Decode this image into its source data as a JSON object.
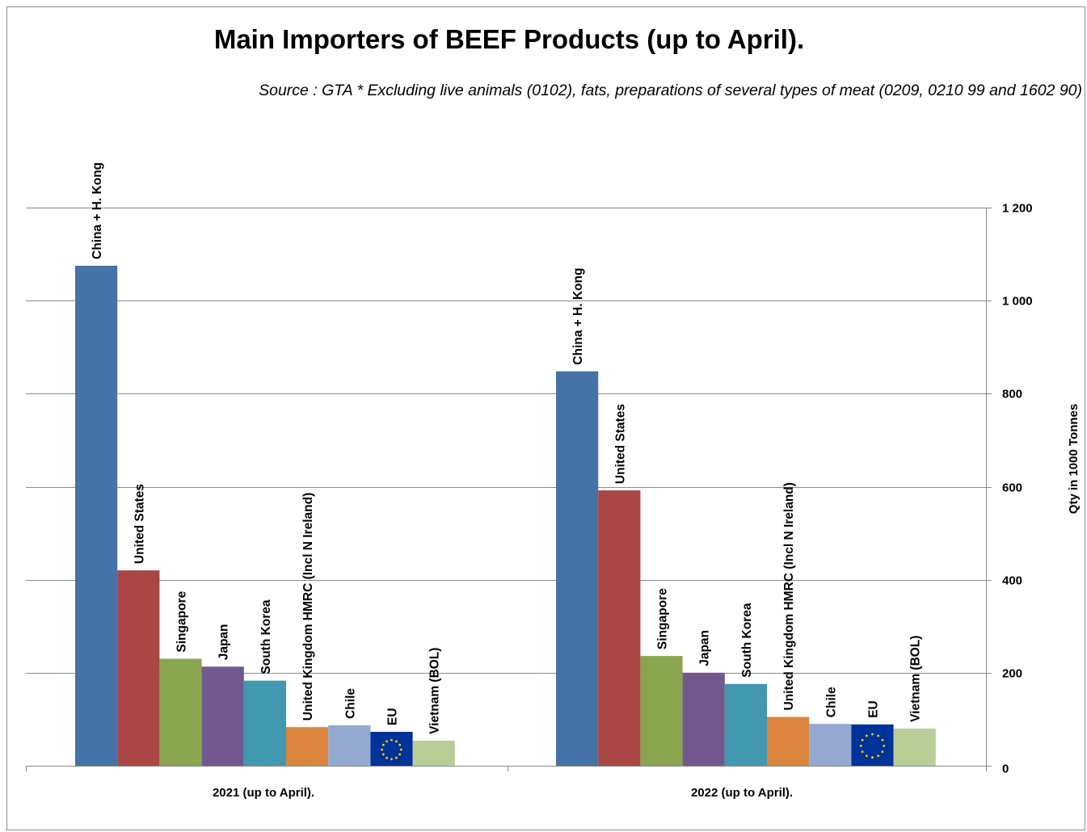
{
  "chart_data": {
    "type": "bar",
    "title": "Main Importers of BEEF Products (up to April).",
    "subtitle": "Source : GTA * Excluding live animals (0102), fats, preparations  of several types of meat (0209, 0210 99 and 1602 90)",
    "categories": [
      "2021 (up to April).",
      "2022 (up to April)."
    ],
    "ylabel": "Qty in 1000 Tonnes",
    "ylim": [
      0,
      1200
    ],
    "yticks": [
      0,
      200,
      400,
      600,
      800,
      1000,
      1200
    ],
    "ytick_labels": [
      "0",
      "200",
      "400",
      "600",
      "800",
      "1 000",
      "1 200"
    ],
    "y_axis_side": "right",
    "grid": true,
    "legend": "none",
    "series": [
      {
        "name": "China + H. Kong",
        "values": [
          1075,
          848
        ],
        "color": "#4572a7"
      },
      {
        "name": "United States",
        "values": [
          420,
          592
        ],
        "color": "#aa4643"
      },
      {
        "name": "Singapore",
        "values": [
          230,
          236
        ],
        "color": "#89a54e"
      },
      {
        "name": "Japan",
        "values": [
          213,
          200
        ],
        "color": "#71588f"
      },
      {
        "name": "South Korea",
        "values": [
          183,
          176
        ],
        "color": "#4198af"
      },
      {
        "name": "United Kingdom HMRC (Incl N Ireland)",
        "values": [
          83,
          105
        ],
        "color": "#db843d"
      },
      {
        "name": "Chile",
        "values": [
          87,
          90
        ],
        "color": "#93a9cf"
      },
      {
        "name": "EU",
        "values": [
          73,
          89
        ],
        "color": "#003399",
        "pattern": "eu-flag"
      },
      {
        "name": "Vietnam (BOL)",
        "values": [
          54,
          80
        ],
        "color": "#b9cd96"
      }
    ]
  }
}
